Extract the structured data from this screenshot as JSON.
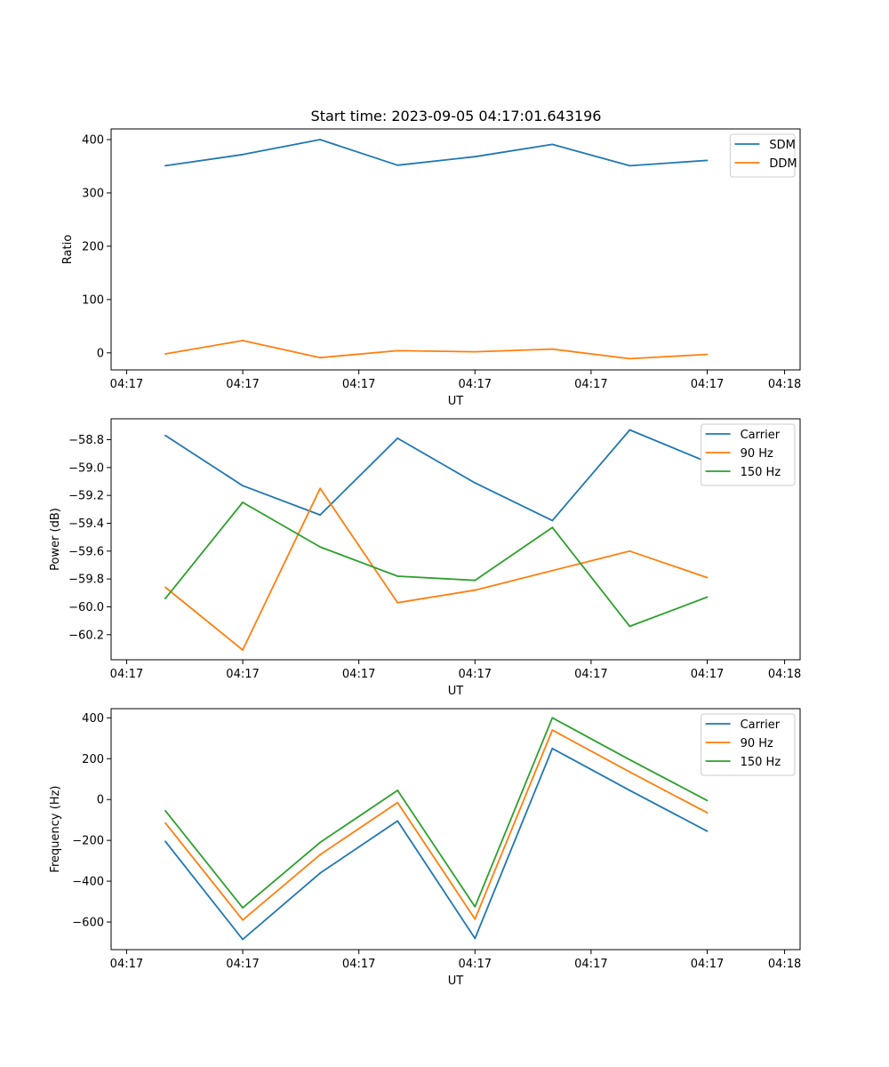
{
  "chart_data": [
    {
      "type": "line",
      "title": "Start time: 2023-09-05 04:17:01.643196",
      "xlabel": "UT",
      "ylabel": "Ratio",
      "x": [
        1,
        2,
        3,
        4,
        5,
        6,
        7,
        8
      ],
      "xlim": [
        0.3,
        9.2
      ],
      "x_ticks": [
        {
          "pos": 0.5,
          "label": "04:17"
        },
        {
          "pos": 2.0,
          "label": "04:17"
        },
        {
          "pos": 3.5,
          "label": "04:17"
        },
        {
          "pos": 5.0,
          "label": "04:17"
        },
        {
          "pos": 6.5,
          "label": "04:17"
        },
        {
          "pos": 8.0,
          "label": "04:17"
        },
        {
          "pos": 9.0,
          "label": "04:18"
        }
      ],
      "ylim": [
        -32,
        420
      ],
      "y_ticks": [
        0,
        100,
        200,
        300,
        400
      ],
      "y_tick_labels": [
        "0",
        "100",
        "200",
        "300",
        "400"
      ],
      "legend_position": "top-right",
      "series": [
        {
          "name": "SDM",
          "color": "#1f77b4",
          "values": [
            351,
            372,
            400,
            352,
            368,
            391,
            351,
            361
          ]
        },
        {
          "name": "DDM",
          "color": "#ff7f0e",
          "values": [
            -2,
            23,
            -9,
            4,
            2,
            7,
            -11,
            -3
          ]
        }
      ]
    },
    {
      "type": "line",
      "title": "",
      "xlabel": "UT",
      "ylabel": "Power (dB)",
      "x": [
        1,
        2,
        3,
        4,
        5,
        6,
        7,
        8
      ],
      "xlim": [
        0.3,
        9.2
      ],
      "x_ticks": [
        {
          "pos": 0.5,
          "label": "04:17"
        },
        {
          "pos": 2.0,
          "label": "04:17"
        },
        {
          "pos": 3.5,
          "label": "04:17"
        },
        {
          "pos": 5.0,
          "label": "04:17"
        },
        {
          "pos": 6.5,
          "label": "04:17"
        },
        {
          "pos": 8.0,
          "label": "04:17"
        },
        {
          "pos": 9.0,
          "label": "04:18"
        }
      ],
      "ylim": [
        -60.38,
        -58.65
      ],
      "y_ticks": [
        -58.8,
        -59.0,
        -59.2,
        -59.4,
        -59.6,
        -59.8,
        -60.0,
        -60.2
      ],
      "y_tick_labels": [
        "−58.8",
        "−59.0",
        "−59.2",
        "−59.4",
        "−59.6",
        "−59.8",
        "−60.0",
        "−60.2"
      ],
      "legend_position": "top-right",
      "series": [
        {
          "name": "Carrier",
          "color": "#1f77b4",
          "values": [
            -58.77,
            -59.13,
            -59.34,
            -58.79,
            -59.11,
            -59.38,
            -58.73,
            -58.96
          ]
        },
        {
          "name": "90 Hz",
          "color": "#ff7f0e",
          "values": [
            -59.86,
            -60.31,
            -59.15,
            -59.97,
            -59.88,
            -59.74,
            -59.6,
            -59.79
          ]
        },
        {
          "name": "150 Hz",
          "color": "#2ca02c",
          "values": [
            -59.94,
            -59.25,
            -59.57,
            -59.78,
            -59.81,
            -59.43,
            -60.14,
            -59.93
          ]
        }
      ]
    },
    {
      "type": "line",
      "title": "",
      "xlabel": "UT",
      "ylabel": "Frequency (Hz)",
      "x": [
        1,
        2,
        3,
        4,
        5,
        6,
        7,
        8
      ],
      "xlim": [
        0.3,
        9.2
      ],
      "x_ticks": [
        {
          "pos": 0.5,
          "label": "04:17"
        },
        {
          "pos": 2.0,
          "label": "04:17"
        },
        {
          "pos": 3.5,
          "label": "04:17"
        },
        {
          "pos": 5.0,
          "label": "04:17"
        },
        {
          "pos": 6.5,
          "label": "04:17"
        },
        {
          "pos": 8.0,
          "label": "04:17"
        },
        {
          "pos": 9.0,
          "label": "04:18"
        }
      ],
      "ylim": [
        -735,
        445
      ],
      "y_ticks": [
        400,
        200,
        0,
        -200,
        -400,
        -600
      ],
      "y_tick_labels": [
        "400",
        "200",
        "0",
        "−200",
        "−400",
        "−600"
      ],
      "legend_position": "top-right",
      "series": [
        {
          "name": "Carrier",
          "color": "#1f77b4",
          "values": [
            -205,
            -685,
            -360,
            -105,
            -680,
            250,
            45,
            -155
          ]
        },
        {
          "name": "90 Hz",
          "color": "#ff7f0e",
          "values": [
            -115,
            -590,
            -270,
            -15,
            -585,
            340,
            135,
            -65
          ]
        },
        {
          "name": "150 Hz",
          "color": "#2ca02c",
          "values": [
            -55,
            -530,
            -210,
            45,
            -525,
            400,
            195,
            -5
          ]
        }
      ]
    }
  ]
}
